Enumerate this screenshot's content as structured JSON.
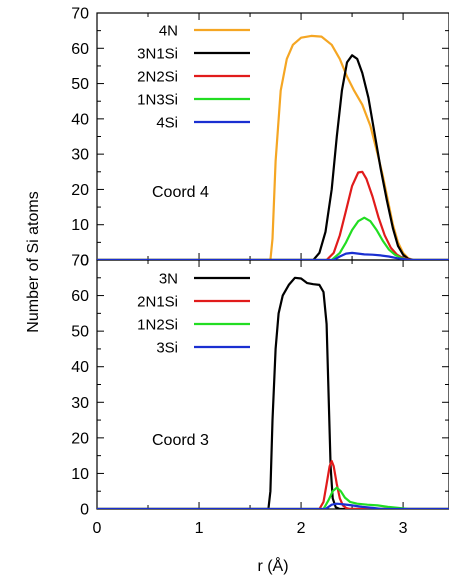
{
  "chart_data": [
    {
      "type": "line",
      "panel": "top",
      "annotation": "Coord 4",
      "xlim": [
        0,
        3.45
      ],
      "ylim": [
        0,
        70
      ],
      "yticks": [
        "0",
        "10",
        "20",
        "30",
        "40",
        "50",
        "60",
        "70"
      ],
      "grid": false,
      "legend_position": "top-right",
      "series": [
        {
          "name": "4N",
          "color": "#f5a623",
          "points": [
            [
              1.7,
              0
            ],
            [
              1.72,
              6
            ],
            [
              1.75,
              28
            ],
            [
              1.8,
              48
            ],
            [
              1.86,
              57
            ],
            [
              1.92,
              61
            ],
            [
              2.0,
              63
            ],
            [
              2.1,
              63.5
            ],
            [
              2.2,
              63.3
            ],
            [
              2.3,
              61
            ],
            [
              2.38,
              57
            ],
            [
              2.45,
              52
            ],
            [
              2.52,
              48
            ],
            [
              2.6,
              44
            ],
            [
              2.68,
              38
            ],
            [
              2.75,
              30
            ],
            [
              2.8,
              24
            ],
            [
              2.85,
              17
            ],
            [
              2.9,
              10
            ],
            [
              2.95,
              5
            ],
            [
              3.0,
              2
            ],
            [
              3.05,
              0.5
            ],
            [
              3.1,
              0
            ]
          ]
        },
        {
          "name": "3N1Si",
          "color": "#000000",
          "points": [
            [
              2.12,
              0
            ],
            [
              2.18,
              2
            ],
            [
              2.24,
              8
            ],
            [
              2.3,
              20
            ],
            [
              2.35,
              35
            ],
            [
              2.4,
              48
            ],
            [
              2.45,
              56
            ],
            [
              2.5,
              58
            ],
            [
              2.55,
              57
            ],
            [
              2.6,
              53
            ],
            [
              2.66,
              46
            ],
            [
              2.72,
              36
            ],
            [
              2.78,
              26
            ],
            [
              2.84,
              17
            ],
            [
              2.9,
              9
            ],
            [
              2.95,
              4
            ],
            [
              3.0,
              1.5
            ],
            [
              3.05,
              0.3
            ],
            [
              3.1,
              0
            ]
          ]
        },
        {
          "name": "2N2Si",
          "color": "#e11b1b",
          "points": [
            [
              2.25,
              0
            ],
            [
              2.32,
              2
            ],
            [
              2.38,
              7
            ],
            [
              2.44,
              14
            ],
            [
              2.5,
              21
            ],
            [
              2.56,
              24.8
            ],
            [
              2.6,
              25
            ],
            [
              2.64,
              23
            ],
            [
              2.7,
              18
            ],
            [
              2.76,
              12
            ],
            [
              2.82,
              7
            ],
            [
              2.88,
              3.5
            ],
            [
              2.94,
              1.5
            ],
            [
              3.0,
              0.5
            ],
            [
              3.08,
              0
            ]
          ]
        },
        {
          "name": "1N3Si",
          "color": "#22dd22",
          "points": [
            [
              2.3,
              0
            ],
            [
              2.38,
              2
            ],
            [
              2.44,
              5
            ],
            [
              2.5,
              8.5
            ],
            [
              2.56,
              11
            ],
            [
              2.62,
              12
            ],
            [
              2.68,
              11
            ],
            [
              2.74,
              8.5
            ],
            [
              2.8,
              5.5
            ],
            [
              2.86,
              3
            ],
            [
              2.92,
              1.5
            ],
            [
              2.98,
              0.6
            ],
            [
              3.05,
              0
            ]
          ]
        },
        {
          "name": "4Si",
          "color": "#1a2fd1",
          "points": [
            [
              2.32,
              0
            ],
            [
              2.38,
              1
            ],
            [
              2.44,
              1.8
            ],
            [
              2.5,
              2
            ],
            [
              2.56,
              1.8
            ],
            [
              2.62,
              1.6
            ],
            [
              2.7,
              1.5
            ],
            [
              2.78,
              1.3
            ],
            [
              2.86,
              1
            ],
            [
              2.94,
              0.5
            ],
            [
              3.02,
              0.2
            ],
            [
              3.1,
              0
            ]
          ]
        }
      ]
    },
    {
      "type": "line",
      "panel": "bottom",
      "annotation": "Coord 3",
      "xlabel": "r (Å)",
      "xlim": [
        0,
        3.45
      ],
      "ylim": [
        0,
        70
      ],
      "xticks": [
        "0",
        "1",
        "2",
        "3"
      ],
      "yticks": [
        "0",
        "10",
        "20",
        "30",
        "40",
        "50",
        "60",
        "70"
      ],
      "grid": false,
      "legend_position": "top-center",
      "series": [
        {
          "name": "3N",
          "color": "#000000",
          "points": [
            [
              1.68,
              0
            ],
            [
              1.7,
              5
            ],
            [
              1.72,
              25
            ],
            [
              1.75,
              45
            ],
            [
              1.78,
              55
            ],
            [
              1.82,
              60
            ],
            [
              1.88,
              63
            ],
            [
              1.94,
              65
            ],
            [
              2.0,
              64.8
            ],
            [
              2.06,
              63.5
            ],
            [
              2.12,
              63.2
            ],
            [
              2.18,
              63
            ],
            [
              2.22,
              61
            ],
            [
              2.25,
              52
            ],
            [
              2.27,
              32
            ],
            [
              2.29,
              12
            ],
            [
              2.31,
              3
            ],
            [
              2.34,
              0.5
            ],
            [
              2.38,
              0
            ]
          ]
        },
        {
          "name": "2N1Si",
          "color": "#e11b1b",
          "points": [
            [
              2.18,
              0
            ],
            [
              2.22,
              2
            ],
            [
              2.25,
              7
            ],
            [
              2.28,
              12
            ],
            [
              2.3,
              13.5
            ],
            [
              2.32,
              12
            ],
            [
              2.35,
              7
            ],
            [
              2.38,
              3
            ],
            [
              2.41,
              1
            ],
            [
              2.44,
              0.3
            ],
            [
              2.48,
              0
            ]
          ]
        },
        {
          "name": "1N2Si",
          "color": "#22dd22",
          "points": [
            [
              2.22,
              0
            ],
            [
              2.27,
              2.5
            ],
            [
              2.31,
              5
            ],
            [
              2.35,
              6
            ],
            [
              2.39,
              5
            ],
            [
              2.43,
              3.2
            ],
            [
              2.48,
              2
            ],
            [
              2.55,
              1.5
            ],
            [
              2.65,
              1.2
            ],
            [
              2.75,
              1
            ],
            [
              2.85,
              0.6
            ],
            [
              2.95,
              0.3
            ],
            [
              3.05,
              0
            ]
          ]
        },
        {
          "name": "3Si",
          "color": "#1a2fd1",
          "points": [
            [
              2.24,
              0
            ],
            [
              2.3,
              1.2
            ],
            [
              2.35,
              1.5
            ],
            [
              2.42,
              1.3
            ],
            [
              2.5,
              1
            ],
            [
              2.6,
              0.6
            ],
            [
              2.7,
              0.3
            ],
            [
              2.8,
              0
            ]
          ]
        }
      ]
    }
  ],
  "shared": {
    "ylabel": "Number of Si atoms"
  }
}
